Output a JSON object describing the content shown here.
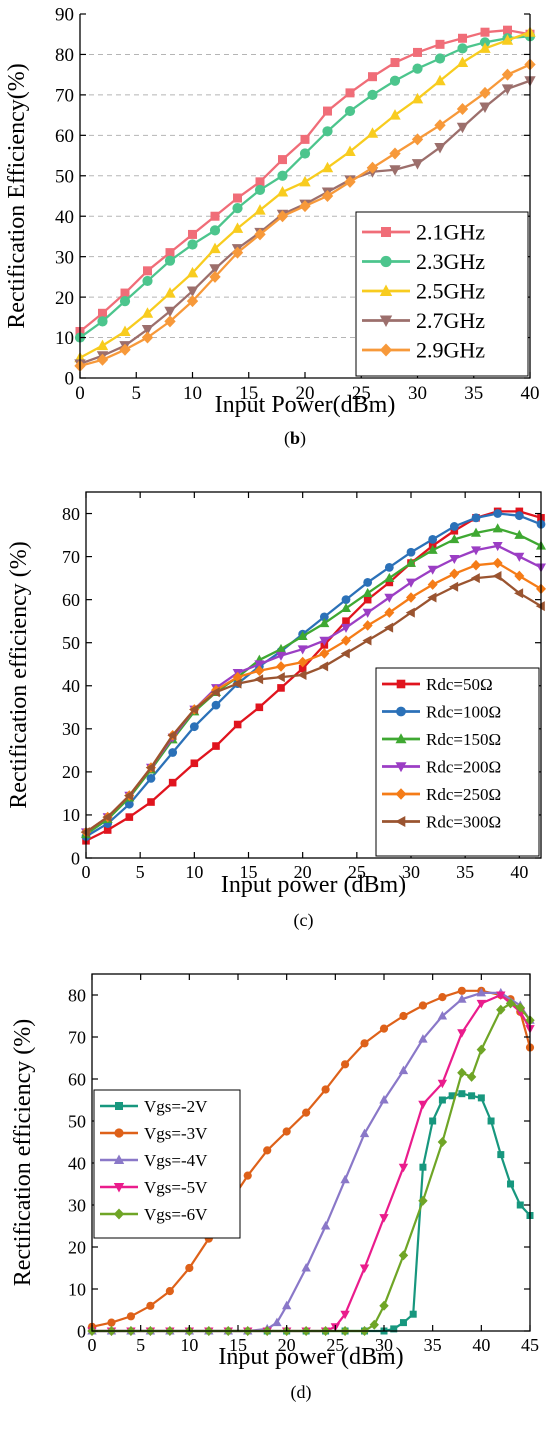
{
  "chart_data": [
    {
      "id": "b",
      "type": "line",
      "panel_label": "b",
      "xlabel": "Input Power(dBm)",
      "ylabel": "Rectification Efficiency(%)",
      "xlim": [
        0,
        40
      ],
      "ylim": [
        0,
        90
      ],
      "xticks": [
        0,
        5,
        10,
        15,
        20,
        25,
        30,
        35,
        40
      ],
      "yticks": [
        0,
        10,
        20,
        30,
        40,
        50,
        60,
        70,
        80,
        90
      ],
      "grid": "horizontal-dashed",
      "legend_position": "bottom-right",
      "x": [
        0,
        2,
        4,
        6,
        8,
        10,
        12,
        14,
        16,
        18,
        20,
        22,
        24,
        26,
        28,
        30,
        32,
        34,
        36,
        38,
        40
      ],
      "series": [
        {
          "name": "2.1GHz",
          "color": "#f06d78",
          "marker": "square",
          "values": [
            11.5,
            16,
            21,
            26.5,
            31,
            35.5,
            40,
            44.5,
            48.5,
            54,
            59,
            66,
            70.5,
            74.5,
            78,
            80.5,
            82.5,
            84,
            85.5,
            86,
            85
          ]
        },
        {
          "name": "2.3GHz",
          "color": "#4cc58d",
          "marker": "circle",
          "values": [
            10,
            14,
            19,
            24,
            29,
            33,
            36.5,
            42,
            46.5,
            50,
            55.5,
            61,
            66,
            70,
            73.5,
            76.5,
            79,
            81.5,
            83,
            84,
            84.5
          ]
        },
        {
          "name": "2.5GHz",
          "color": "#f8cc1f",
          "marker": "triangle-up",
          "values": [
            5,
            8,
            11.5,
            16,
            21,
            26,
            32,
            37,
            41.5,
            46,
            48.5,
            52,
            56,
            60.5,
            65,
            69,
            73.5,
            78,
            81.5,
            83.5,
            85.5
          ]
        },
        {
          "name": "2.7GHz",
          "color": "#9c6f6c",
          "marker": "triangle-down",
          "values": [
            3.5,
            5.5,
            8,
            12,
            16.5,
            21.5,
            27,
            32,
            36,
            40.5,
            43,
            46,
            49,
            51,
            51.5,
            53,
            57,
            62,
            67,
            71.5,
            73.5
          ]
        },
        {
          "name": "2.9GHz",
          "color": "#f7993a",
          "marker": "diamond",
          "values": [
            3,
            4.5,
            7,
            10,
            14,
            19,
            25,
            31,
            35.5,
            40,
            42.5,
            45,
            48.5,
            52,
            55.5,
            59,
            62.5,
            66.5,
            70.5,
            75,
            77.5
          ]
        }
      ]
    },
    {
      "id": "c",
      "type": "line",
      "panel_label": "c",
      "xlabel": "Input power (dBm)",
      "ylabel": "Rectification efficiency (%)",
      "xlim": [
        0,
        42
      ],
      "ylim": [
        0,
        85
      ],
      "xticks": [
        0,
        5,
        10,
        15,
        20,
        25,
        30,
        35,
        40
      ],
      "yticks": [
        0,
        10,
        20,
        30,
        40,
        50,
        60,
        70,
        80
      ],
      "grid": "none",
      "legend_position": "bottom-right",
      "x": [
        0,
        2,
        4,
        6,
        8,
        10,
        12,
        14,
        16,
        18,
        20,
        22,
        24,
        26,
        28,
        30,
        32,
        34,
        36,
        38,
        40,
        42
      ],
      "series": [
        {
          "name": "Rdc=50Ω",
          "color": "#e0141e",
          "marker": "square",
          "values": [
            4,
            6.5,
            9.5,
            13,
            17.5,
            22,
            26,
            31,
            35,
            39.5,
            44,
            49.5,
            55,
            60,
            64,
            68.5,
            72.5,
            76,
            79,
            80.5,
            80.5,
            79
          ]
        },
        {
          "name": "Rdc=100Ω",
          "color": "#2b71b8",
          "marker": "circle",
          "values": [
            5,
            8,
            12.5,
            18.5,
            24.5,
            30.5,
            35.5,
            40.5,
            44.5,
            48,
            52,
            56,
            60,
            64,
            67.5,
            71,
            74,
            77,
            79,
            80,
            79.5,
            77.5
          ]
        },
        {
          "name": "Rdc=150Ω",
          "color": "#3fa832",
          "marker": "triangle-up",
          "values": [
            5.5,
            9,
            14,
            20.5,
            27.5,
            34,
            38.5,
            42,
            46,
            48.5,
            51.5,
            54.5,
            58,
            61.5,
            65,
            68.5,
            71.5,
            74,
            75.5,
            76.5,
            75,
            72.5
          ]
        },
        {
          "name": "Rdc=200Ω",
          "color": "#9b3ec4",
          "marker": "triangle-down",
          "values": [
            6,
            9.5,
            14.5,
            21,
            28,
            34.5,
            39.5,
            43,
            45,
            47,
            48.5,
            50.5,
            53.5,
            57,
            60.5,
            64,
            67,
            69.5,
            71.5,
            72.5,
            70,
            67.5
          ]
        },
        {
          "name": "Rdc=250Ω",
          "color": "#f57c17",
          "marker": "diamond",
          "values": [
            6,
            9.5,
            14.5,
            21,
            28.5,
            34.5,
            39,
            42,
            43.5,
            44.5,
            45.5,
            47.5,
            50.5,
            54,
            57,
            60.5,
            63.5,
            66,
            68,
            68.5,
            65.5,
            62.5
          ]
        },
        {
          "name": "Rdc=300Ω",
          "color": "#9a5430",
          "marker": "triangle-left",
          "values": [
            6,
            9.5,
            14.5,
            21,
            28.5,
            34.5,
            38.5,
            40.5,
            41.5,
            42,
            42.5,
            44.5,
            47.5,
            50.5,
            53.5,
            57,
            60.5,
            63,
            65,
            65.5,
            61.5,
            58.5
          ]
        }
      ]
    },
    {
      "id": "d",
      "type": "line",
      "panel_label": "d",
      "xlabel": "Input power (dBm)",
      "ylabel": "Rectification efficiency (%)",
      "xlim": [
        0,
        45
      ],
      "ylim": [
        0,
        85
      ],
      "xticks": [
        0,
        5,
        10,
        15,
        20,
        25,
        30,
        35,
        40,
        45
      ],
      "yticks": [
        0,
        10,
        20,
        30,
        40,
        50,
        60,
        70,
        80
      ],
      "grid": "none",
      "legend_position": "top-left",
      "series": [
        {
          "name": "Vgs=-2V",
          "color": "#17977e",
          "marker": "square",
          "x": [
            0,
            2,
            4,
            6,
            8,
            10,
            12,
            14,
            16,
            18,
            20,
            22,
            24,
            26,
            28,
            30,
            31,
            32,
            33,
            34,
            35,
            36,
            37,
            38,
            39,
            40,
            41,
            42,
            43,
            44,
            45
          ],
          "values": [
            0,
            0,
            0,
            0,
            0,
            0,
            0,
            0,
            0,
            0,
            0,
            0,
            0,
            0,
            0,
            0,
            0.5,
            2,
            4,
            39,
            50,
            55,
            56,
            56.5,
            56,
            55.5,
            50,
            42,
            35,
            30,
            27.5
          ]
        },
        {
          "name": "Vgs=-3V",
          "color": "#de6119",
          "marker": "circle",
          "x": [
            0,
            2,
            4,
            6,
            8,
            10,
            12,
            14,
            16,
            18,
            20,
            22,
            24,
            26,
            28,
            30,
            32,
            34,
            36,
            38,
            40,
            42,
            43,
            44,
            45
          ],
          "values": [
            1,
            2,
            3.5,
            6,
            9.5,
            15,
            22,
            30,
            37,
            43,
            47.5,
            52,
            57.5,
            63.5,
            68.5,
            72,
            75,
            77.5,
            79.5,
            81,
            81,
            80,
            79,
            76,
            67.5
          ]
        },
        {
          "name": "Vgs=-4V",
          "color": "#8a78c8",
          "marker": "triangle-up",
          "x": [
            0,
            2,
            4,
            6,
            8,
            10,
            12,
            14,
            16,
            18,
            19,
            20,
            22,
            24,
            26,
            28,
            30,
            32,
            34,
            36,
            38,
            40,
            42,
            44,
            45
          ],
          "values": [
            0,
            0,
            0,
            0,
            0,
            0,
            0,
            0,
            0,
            0.5,
            2,
            6,
            15,
            25,
            36,
            47,
            55,
            62,
            69.5,
            75,
            79,
            80.5,
            80.5,
            77.5,
            74
          ]
        },
        {
          "name": "Vgs=-5V",
          "color": "#ea1c8c",
          "marker": "triangle-down",
          "x": [
            0,
            2,
            4,
            6,
            8,
            10,
            12,
            14,
            16,
            18,
            20,
            22,
            24,
            25,
            26,
            28,
            30,
            32,
            34,
            36,
            38,
            40,
            42,
            44,
            45
          ],
          "values": [
            0,
            0,
            0,
            0,
            0,
            0,
            0,
            0,
            0,
            0,
            0,
            0,
            0,
            1,
            4,
            15,
            27,
            39,
            54,
            59,
            71,
            78,
            80,
            76,
            72
          ]
        },
        {
          "name": "Vgs=-6V",
          "color": "#6fa526",
          "marker": "diamond",
          "x": [
            0,
            2,
            4,
            6,
            8,
            10,
            12,
            14,
            16,
            18,
            20,
            22,
            24,
            26,
            28,
            29,
            30,
            32,
            34,
            36,
            38,
            39,
            40,
            42,
            43,
            44,
            45
          ],
          "values": [
            0,
            0,
            0,
            0,
            0,
            0,
            0,
            0,
            0,
            0,
            0,
            0,
            0,
            0,
            0,
            1.5,
            6,
            18,
            31,
            45,
            61.5,
            60.5,
            67,
            76.5,
            78,
            77,
            74
          ]
        }
      ]
    }
  ]
}
